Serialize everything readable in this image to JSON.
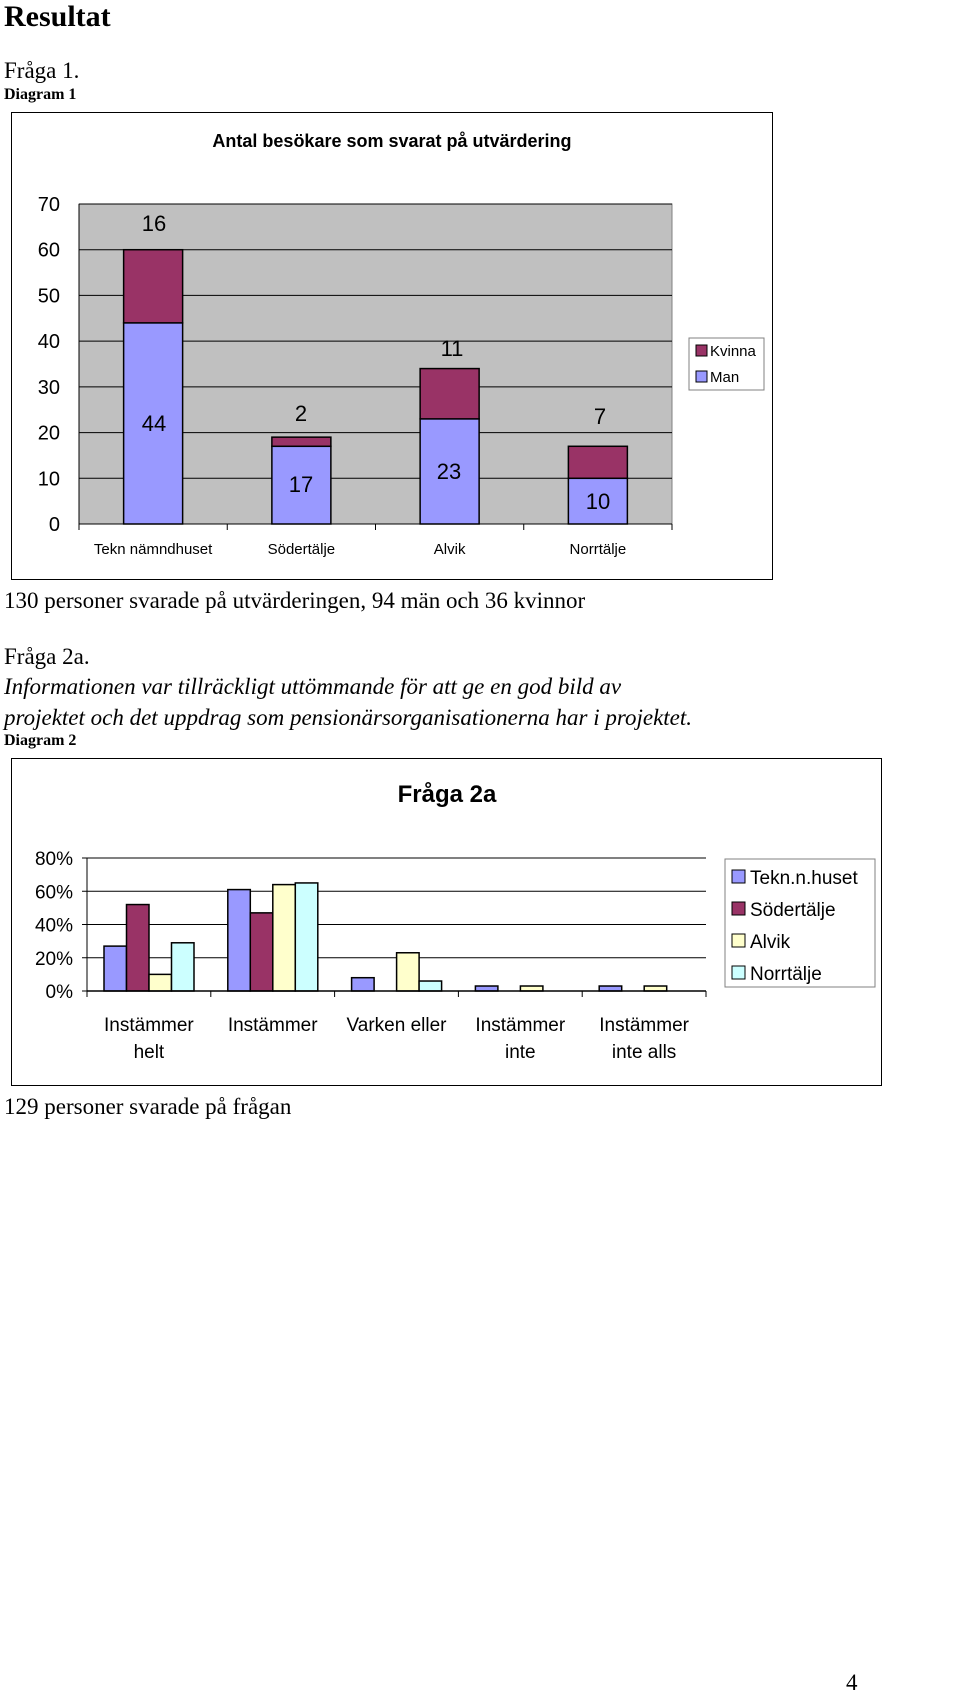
{
  "heading": "Resultat",
  "question1": {
    "label": "Fråga 1.",
    "diagram_label": "Diagram 1",
    "summary": "130 personer svarade på utvärderingen, 94 män och 36 kvinnor"
  },
  "question2a": {
    "label": "Fråga 2a.",
    "text_line1": "Informationen var tillräckligt uttömmande för att ge en god bild av",
    "text_line2": "projektet och det uppdrag som pensionärsorganisationerna har i projektet.",
    "diagram_label": "Diagram 2",
    "summary": "129 personer svarade på frågan"
  },
  "page_number": "4",
  "chart_data": [
    {
      "type": "bar",
      "stacked": true,
      "title": "Antal besökare som svarat på utvärdering",
      "categories": [
        "Tekn nämndhuset",
        "Södertälje",
        "Alvik",
        "Norrtälje"
      ],
      "series": [
        {
          "name": "Man",
          "values": [
            44,
            17,
            23,
            10
          ],
          "color": "#9999ff"
        },
        {
          "name": "Kvinna",
          "values": [
            16,
            2,
            11,
            7
          ],
          "color": "#993366"
        }
      ],
      "ylim": [
        0,
        70
      ],
      "yticks": [
        "0",
        "10",
        "20",
        "30",
        "40",
        "50",
        "60",
        "70"
      ],
      "legend": [
        "Kvinna",
        "Man"
      ],
      "legend_position": "right",
      "plot_background": "#c0c0c0",
      "grid": true
    },
    {
      "type": "bar",
      "title": "Fråga 2a",
      "categories": [
        [
          "Instämmer",
          "helt"
        ],
        [
          "Instämmer",
          ""
        ],
        [
          "Varken eller",
          ""
        ],
        [
          "Instämmer",
          "inte"
        ],
        [
          "Instämmer",
          "inte alls"
        ]
      ],
      "series": [
        {
          "name": "Tekn.n.huset",
          "values": [
            0.27,
            0.61,
            0.08,
            0.03,
            0.03
          ],
          "color": "#9999ff"
        },
        {
          "name": "Södertälje",
          "values": [
            0.52,
            0.47,
            0.0,
            0.0,
            0.0
          ],
          "color": "#993366"
        },
        {
          "name": "Alvik",
          "values": [
            0.1,
            0.64,
            0.23,
            0.03,
            0.03
          ],
          "color": "#ffffcc"
        },
        {
          "name": "Norrtälje",
          "values": [
            0.29,
            0.65,
            0.06,
            0.0,
            0.0
          ],
          "color": "#ccffff"
        }
      ],
      "ylim": [
        0,
        0.8
      ],
      "yticks": [
        "0%",
        "20%",
        "40%",
        "60%",
        "80%"
      ],
      "legend_position": "right",
      "plot_background": "#ffffff",
      "grid": true
    }
  ]
}
